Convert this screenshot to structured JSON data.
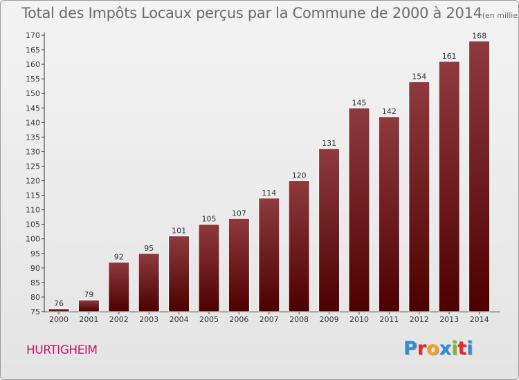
{
  "header": {
    "title": "Total des Impôts Locaux perçus par la Commune de 2000 à 2014",
    "unit": "(en milliers d'€)"
  },
  "footer": {
    "commune": "HURTIGHEIM",
    "logo_letters": [
      "P",
      "r",
      "o",
      "x",
      "i",
      "t",
      "i"
    ],
    "logo_colors": [
      "#2f8ad8",
      "#e8262a",
      "#f2a21c",
      "#2f8ad8",
      "#7dbb2c",
      "#e8262a",
      "#2f8ad8"
    ]
  },
  "chart_data": {
    "type": "bar",
    "categories": [
      "2000",
      "2001",
      "2002",
      "2003",
      "2004",
      "2005",
      "2006",
      "2007",
      "2008",
      "2009",
      "2010",
      "2011",
      "2012",
      "2013",
      "2014"
    ],
    "values": [
      76,
      79,
      92,
      95,
      101,
      105,
      107,
      114,
      120,
      131,
      145,
      142,
      154,
      161,
      168
    ],
    "title": "Total des Impôts Locaux perçus par la Commune de 2000 à 2014",
    "xlabel": "",
    "ylabel": "",
    "ylim": [
      75,
      170
    ],
    "ytick_step": 5,
    "grid": false,
    "bar_color_top": "#8e3a3e",
    "bar_color_bottom": "#4d0000"
  }
}
